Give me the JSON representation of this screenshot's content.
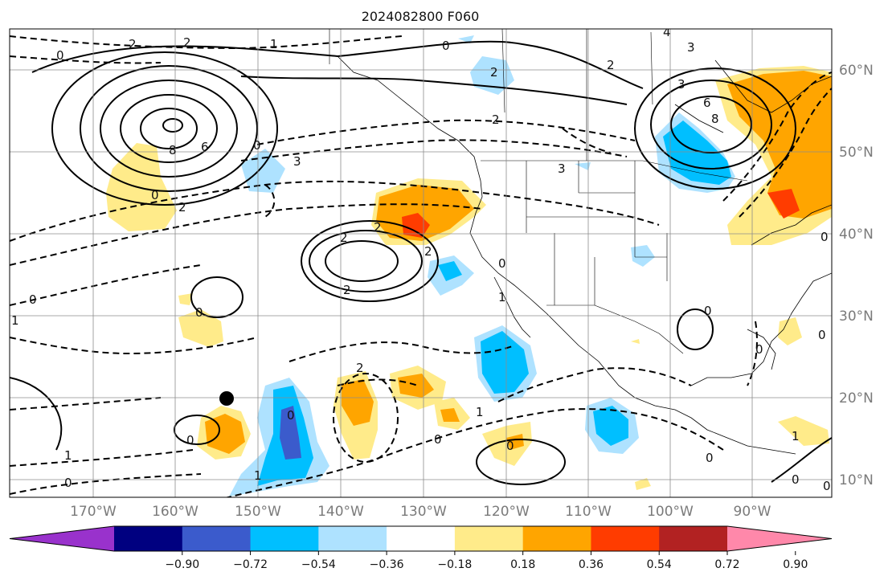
{
  "title": "2024082800 F060",
  "lon_labels": [
    "170°W",
    "160°W",
    "150°W",
    "140°W",
    "130°W",
    "120°W",
    "110°W",
    "100°W",
    "90°W"
  ],
  "lat_labels": [
    "60°N",
    "50°N",
    "40°N",
    "30°N",
    "20°N",
    "10°N"
  ],
  "colorbar": {
    "colors": [
      "#9932cc",
      "#000080",
      "#3b5bcc",
      "#00bfff",
      "#aee2ff",
      "#ffffff",
      "#ffeb8a",
      "#ffa500",
      "#ff3c00",
      "#b22222",
      "#ff88aa"
    ],
    "tick_labels": [
      "−0.90",
      "−0.72",
      "−0.54",
      "−0.36",
      "−0.18",
      "0.18",
      "0.36",
      "0.54",
      "0.72",
      "0.90"
    ]
  },
  "contour_labels": [
    "2",
    "1",
    "0",
    "2",
    "0",
    "3",
    "4",
    "2",
    "3",
    "6",
    "8",
    "2",
    "6",
    "8",
    "0",
    "2",
    "0",
    "3",
    "2",
    "3",
    "2",
    "2",
    "0",
    "0",
    "2",
    "2",
    "0",
    "1",
    "0",
    "1",
    "0",
    "0",
    "0",
    "1",
    "0",
    "1",
    "0",
    "0",
    "0",
    "0",
    "0",
    "2",
    "1",
    "0",
    "1",
    "0"
  ],
  "colors": {
    "axis": "#000000",
    "grid": "#8c8c8c",
    "land": "#000000"
  }
}
